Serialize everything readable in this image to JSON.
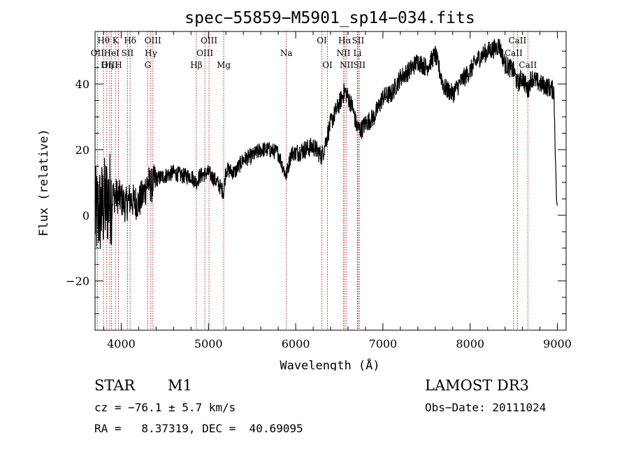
{
  "chart_data": {
    "type": "line",
    "title": "spec−55859−M5901_sp14−034.fits",
    "xlabel": "Wavelength (Å)",
    "ylabel": "Flux (relative)",
    "xlim": [
      3700,
      9100
    ],
    "ylim": [
      -35,
      56
    ],
    "xticks": [
      4000,
      5000,
      6000,
      7000,
      8000,
      9000
    ],
    "xtick_labels": [
      "4000",
      "5000",
      "6000",
      "7000",
      "8000",
      "9000"
    ],
    "yticks": [
      -20,
      0,
      20,
      40
    ],
    "ytick_labels": [
      "−20",
      "0",
      "20",
      "40"
    ],
    "series": [
      {
        "name": "flux",
        "x": [
          3700,
          3750,
          3800,
          3850,
          3900,
          3950,
          4000,
          4050,
          4100,
          4150,
          4200,
          4250,
          4300,
          4350,
          4400,
          4500,
          4600,
          4700,
          4800,
          4860,
          4900,
          5000,
          5100,
          5175,
          5200,
          5300,
          5400,
          5500,
          5600,
          5700,
          5800,
          5890,
          5950,
          6000,
          6100,
          6200,
          6300,
          6400,
          6500,
          6563,
          6600,
          6650,
          6700,
          6750,
          6800,
          6900,
          7000,
          7100,
          7200,
          7300,
          7400,
          7500,
          7600,
          7650,
          7700,
          7800,
          7900,
          8000,
          8100,
          8200,
          8300,
          8330,
          8400,
          8500,
          8542,
          8600,
          8662,
          8700,
          8800,
          8900,
          8960,
          8990,
          9000
        ],
        "y": [
          0,
          1,
          3,
          5,
          6,
          6,
          5,
          3,
          5,
          4,
          4,
          6,
          10,
          9,
          11,
          12,
          13,
          12,
          12,
          10,
          12,
          13,
          10,
          7,
          14,
          13,
          17,
          18,
          20,
          20,
          19,
          12,
          19,
          19,
          20,
          21,
          18,
          28,
          34,
          38,
          36,
          33,
          27,
          26,
          28,
          30,
          36,
          37,
          42,
          44,
          47,
          45,
          49,
          44,
          39,
          37,
          41,
          44,
          48,
          50,
          51,
          52,
          46,
          44,
          40,
          42,
          38,
          42,
          40,
          39,
          38,
          5,
          2
        ]
      }
    ],
    "annotations": [
      {
        "label": "Hθ",
        "x": 3797,
        "row": 1
      },
      {
        "label": "OII",
        "x": 3727,
        "row": 2
      },
      {
        "label": "OIII",
        "x": 3869,
        "row": 3
      },
      {
        "label": "K",
        "x": 3934,
        "row": 1
      },
      {
        "label": "HeI",
        "x": 3889,
        "row": 2
      },
      {
        "label": "Hη",
        "x": 3835,
        "row": 3
      },
      {
        "label": "SII",
        "x": 4072,
        "row": 2
      },
      {
        "label": "H",
        "x": 3969,
        "row": 3
      },
      {
        "label": "Hδ",
        "x": 4102,
        "row": 1
      },
      {
        "label": "OIII",
        "x": 4363,
        "row": 1
      },
      {
        "label": "Hγ",
        "x": 4340,
        "row": 2
      },
      {
        "label": "G",
        "x": 4304,
        "row": 3
      },
      {
        "label": "OIII",
        "x": 5007,
        "row": 1
      },
      {
        "label": "OIII",
        "x": 4959,
        "row": 2
      },
      {
        "label": "Hβ",
        "x": 4861,
        "row": 3
      },
      {
        "label": "Mg",
        "x": 5175,
        "row": 3
      },
      {
        "label": "Na",
        "x": 5893,
        "row": 2
      },
      {
        "label": "OI",
        "x": 6300,
        "row": 1
      },
      {
        "label": "OI",
        "x": 6364,
        "row": 3
      },
      {
        "label": "Hα",
        "x": 6563,
        "row": 1
      },
      {
        "label": "SII",
        "x": 6716,
        "row": 1
      },
      {
        "label": "NII",
        "x": 6548,
        "row": 2
      },
      {
        "label": "Li",
        "x": 6708,
        "row": 2
      },
      {
        "label": "NII",
        "x": 6584,
        "row": 3
      },
      {
        "label": "SII",
        "x": 6731,
        "row": 3
      },
      {
        "label": "CaII",
        "x": 8542,
        "row": 1
      },
      {
        "label": "CaII",
        "x": 8498,
        "row": 2
      },
      {
        "label": "CaII",
        "x": 8662,
        "row": 3
      }
    ],
    "grid": false,
    "legend": "none"
  },
  "info": {
    "object_class": "STAR",
    "subclass": "M1",
    "redshift": "cz = −76.1 ± 5.7 km/s",
    "coords": "RA =   8.37319, DEC =  40.69095",
    "survey": "LAMOST DR3",
    "obs_date": "Obs−Date: 20111024"
  }
}
